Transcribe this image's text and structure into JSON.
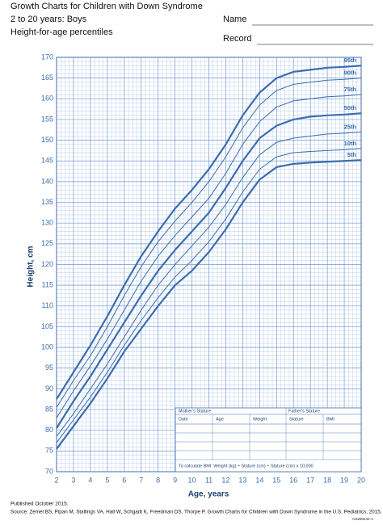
{
  "header": {
    "title": "Growth Charts for Children with Down Syndrome",
    "subtitle": "2 to 20 years: Boys",
    "chart_name": "Height-for-age percentiles",
    "name_label": "Name",
    "record_label": "Record"
  },
  "chart_data": {
    "type": "line",
    "x_label": "Age, years",
    "y_label": "Height, cm",
    "x": [
      2,
      3,
      4,
      5,
      6,
      7,
      8,
      9,
      10,
      11,
      12,
      13,
      14,
      15,
      16,
      17,
      18,
      19,
      20
    ],
    "xlim": [
      2,
      20
    ],
    "xticks": [
      2,
      3,
      4,
      5,
      6,
      7,
      8,
      9,
      10,
      11,
      12,
      13,
      14,
      15,
      16,
      17,
      18,
      19,
      20
    ],
    "ylim": [
      70,
      170
    ],
    "yticks": [
      70,
      75,
      80,
      85,
      90,
      95,
      100,
      105,
      110,
      115,
      120,
      125,
      130,
      135,
      140,
      145,
      150,
      155,
      160,
      165,
      170
    ],
    "grid": true,
    "series": [
      {
        "name": "95th",
        "color": "#3c6db0",
        "width": 2.2,
        "values": [
          87.5,
          94,
          100.5,
          107.5,
          115,
          122,
          128,
          133.5,
          138,
          143,
          149,
          156,
          161.5,
          165,
          166.5,
          167,
          167.5,
          167.7,
          168
        ]
      },
      {
        "name": "90th",
        "color": "#3c6db0",
        "width": 1,
        "values": [
          85.5,
          92,
          98,
          105,
          112.5,
          119.5,
          125.5,
          130.5,
          135,
          140,
          146,
          153,
          158.5,
          162,
          163.5,
          164,
          164.5,
          164.7,
          165
        ]
      },
      {
        "name": "75th",
        "color": "#3c6db0",
        "width": 1,
        "values": [
          83,
          89.5,
          95.5,
          102,
          109,
          116,
          122,
          127,
          131.5,
          136,
          142,
          149,
          154.5,
          158,
          159.5,
          160,
          160.5,
          160.7,
          161
        ]
      },
      {
        "name": "50th",
        "color": "#3c6db0",
        "width": 2.2,
        "values": [
          80.5,
          87,
          93,
          99.5,
          106,
          112.5,
          118.5,
          123.5,
          128,
          132.5,
          138.5,
          145,
          150.5,
          153.5,
          155,
          155.7,
          156,
          156.2,
          156.5
        ]
      },
      {
        "name": "25th",
        "color": "#3c6db0",
        "width": 1,
        "values": [
          78.5,
          84,
          90,
          96,
          102.5,
          109,
          115,
          120,
          124.5,
          129,
          134.5,
          141,
          146.5,
          149.5,
          150.5,
          151,
          151.5,
          151.7,
          152
        ]
      },
      {
        "name": "10th",
        "color": "#3c6db0",
        "width": 1,
        "values": [
          77,
          82.5,
          88,
          94,
          100.5,
          106.5,
          112,
          117,
          121,
          125.5,
          131,
          137.5,
          143,
          146,
          147,
          147.3,
          147.5,
          147.7,
          148
        ]
      },
      {
        "name": "5th",
        "color": "#3c6db0",
        "width": 2.2,
        "values": [
          75.5,
          81,
          86.5,
          92.5,
          99,
          104.5,
          110,
          115,
          118.5,
          123,
          128.5,
          135,
          140.5,
          143.5,
          144.3,
          144.6,
          144.8,
          145,
          145.2
        ]
      }
    ]
  },
  "form": {
    "mother": "Mother's Stature",
    "father": "Father's Stature",
    "columns": [
      "Date",
      "Age",
      "Weight",
      "Stature",
      "BMI"
    ],
    "note": "To calculate BMI: Weight (kg) ÷ Stature (cm) ÷ Stature (cm) x 10,000"
  },
  "footer": {
    "published": "Published October 2015.",
    "source": "Source: Zemel BS, Pipan M, Stallings VA, Hall W, Schgadt K, Freedman DS, Thorpe P. Growth Charts for Children with Down Syndrome in the U.S. Pediatrics, 2015.",
    "code": "CS260242-A"
  }
}
